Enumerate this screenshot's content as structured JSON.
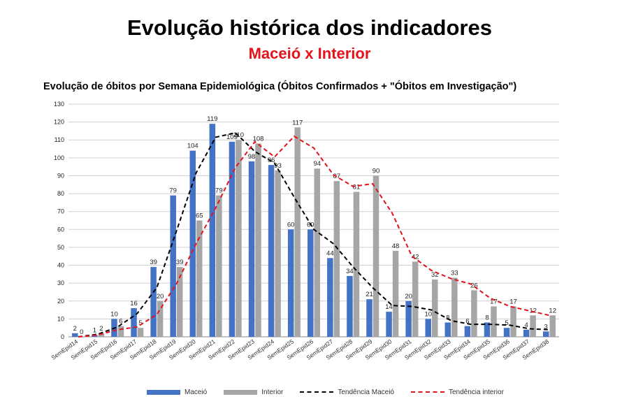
{
  "header": {
    "title": "Evolução histórica dos indicadores",
    "subtitle": "Maceió x Interior"
  },
  "colors": {
    "maceio": "#4472c4",
    "interior": "#a6a6a6",
    "trend_maceio": "#000000",
    "trend_interior": "#e2141b",
    "subtitle": "#e2141b",
    "grid": "#d0d0d0"
  },
  "chart_data": {
    "type": "bar",
    "title": "Evolução de óbitos por Semana Epidemiológica (Óbitos Confirmados + \"Óbitos em Investigação\")",
    "categories": [
      "SemEpid14",
      "SemEpid15",
      "SemEpid16",
      "SemEpid17",
      "SemEpid18",
      "SemEpid19",
      "SemEpid20",
      "SemEpid21",
      "SemEpid22",
      "SemEpid23",
      "SemEpid24",
      "SemEpid25",
      "SemEpid26",
      "SemEpid27",
      "SemEpid28",
      "SemEpid29",
      "SemEpid30",
      "SemEpid31",
      "SemEpid32",
      "SemEpid33",
      "SemEpid34",
      "SemEpid35",
      "SemEpid36",
      "SemEpid37",
      "SemEpid38"
    ],
    "series": [
      {
        "name": "Maceió",
        "kind": "bar",
        "values": [
          2,
          1,
          10,
          16,
          39,
          79,
          104,
          119,
          109,
          98,
          96,
          60,
          60,
          44,
          34,
          21,
          14,
          20,
          10,
          8,
          6,
          8,
          5,
          4,
          3
        ]
      },
      {
        "name": "Interior",
        "kind": "bar",
        "values": [
          0,
          2,
          6,
          5,
          20,
          39,
          65,
          79,
          110,
          108,
          93,
          117,
          94,
          87,
          81,
          90,
          48,
          42,
          32,
          33,
          26,
          17,
          17,
          12,
          12
        ]
      },
      {
        "name": "Tendência Maceió",
        "kind": "dashed-line",
        "values": [
          0,
          1.5,
          5.5,
          13,
          27.5,
          59,
          91.5,
          111.5,
          114,
          103.5,
          97,
          78,
          60,
          52,
          39,
          27.5,
          17.5,
          17,
          15,
          9,
          7,
          7,
          6.5,
          4.5,
          4
        ]
      },
      {
        "name": "Tendência interior",
        "kind": "dashed-line",
        "values": [
          0,
          1,
          4,
          5.5,
          12.5,
          29.5,
          52,
          72,
          94.5,
          109,
          100.5,
          112,
          105.5,
          90.5,
          84,
          85.5,
          69,
          45,
          37,
          32.5,
          29.5,
          21.5,
          17,
          14.5,
          12
        ]
      }
    ],
    "ylim": [
      0,
      130
    ],
    "yticks": [
      0,
      10,
      20,
      30,
      40,
      50,
      60,
      70,
      80,
      90,
      100,
      110,
      120,
      130
    ],
    "grid": true,
    "legend": {
      "position": "bottom",
      "entries": [
        "Maceió",
        "Interior",
        "Tendência Maceió",
        "Tendência interior"
      ]
    }
  }
}
